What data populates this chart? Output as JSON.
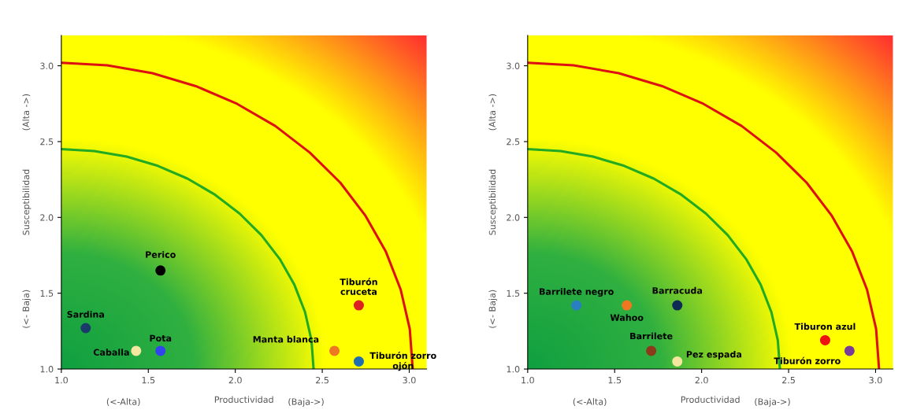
{
  "chart_data": [
    {
      "type": "scatter",
      "xlabel": "Productividad",
      "ylabel": "Susceptibilidad",
      "annotations": [
        "(<-Alta)",
        "(Baja->)",
        "(<- Baja)",
        "(Alta ->)"
      ],
      "xlim": [
        1.0,
        3.1
      ],
      "ylim": [
        1.0,
        3.2
      ],
      "xticks": [
        {
          "value": 1.0,
          "label": "1.0"
        },
        {
          "value": 1.5,
          "label": "1.5"
        },
        {
          "value": 2.0,
          "label": "2.0"
        },
        {
          "value": 2.5,
          "label": "2.5"
        },
        {
          "value": 3.0,
          "label": "3.0"
        }
      ],
      "yticks": [
        {
          "value": 1.0,
          "label": "1.0"
        },
        {
          "value": 1.5,
          "label": "1.5"
        },
        {
          "value": 2.0,
          "label": "2.0"
        },
        {
          "value": 2.5,
          "label": "2.5"
        },
        {
          "value": 3.0,
          "label": "3.0"
        }
      ],
      "grid": false,
      "legend": false,
      "marker": "circle",
      "series": [
        {
          "type": "line",
          "marker": "none",
          "color": "#22aa22",
          "x": [
            1.0,
            1.189,
            1.375,
            1.555,
            1.725,
            1.883,
            2.025,
            2.15,
            2.256,
            2.34,
            2.401,
            2.438,
            2.45
          ],
          "values": [
            2.45,
            2.438,
            2.401,
            2.34,
            2.256,
            2.15,
            2.025,
            1.883,
            1.725,
            1.555,
            1.375,
            1.189,
            1.0
          ]
        },
        {
          "type": "line",
          "marker": "none",
          "color": "#dd1111",
          "x": [
            1.0,
            1.264,
            1.523,
            1.773,
            2.01,
            2.23,
            2.428,
            2.603,
            2.749,
            2.866,
            2.951,
            3.003,
            3.02
          ],
          "values": [
            3.02,
            3.003,
            2.951,
            2.866,
            2.749,
            2.603,
            2.428,
            2.23,
            2.01,
            1.773,
            1.523,
            1.264,
            1.0
          ]
        },
        {
          "name": "Perico",
          "color": "#000000",
          "x": [
            1.57
          ],
          "values": [
            1.65
          ]
        },
        {
          "name": "Sardina",
          "color": "#1a3a6a",
          "x": [
            1.14
          ],
          "values": [
            1.27
          ]
        },
        {
          "name": "Caballa",
          "color": "#f5e6a0",
          "x": [
            1.43
          ],
          "values": [
            1.12
          ]
        },
        {
          "name": "Pota",
          "color": "#3344ee",
          "x": [
            1.57
          ],
          "values": [
            1.12
          ]
        },
        {
          "name": "Manta blanca",
          "color": "#ee7722",
          "x": [
            2.57
          ],
          "values": [
            1.12
          ]
        },
        {
          "name": "Tiburón\ncruceta",
          "color": "#dd2222",
          "x": [
            2.71
          ],
          "values": [
            1.42
          ]
        },
        {
          "name": "Tiburón zorro\nojón",
          "color": "#1f6fb0",
          "x": [
            2.71
          ],
          "values": [
            1.05
          ]
        }
      ]
    },
    {
      "type": "scatter",
      "xlabel": "Productividad",
      "ylabel": "Susceptibilidad",
      "annotations": [
        "(<-Alta)",
        "(Baja->)",
        "(<- Baja)",
        "(Alta ->)"
      ],
      "xlim": [
        1.0,
        3.1
      ],
      "ylim": [
        1.0,
        3.2
      ],
      "xticks": [
        {
          "value": 1.0,
          "label": "1.0"
        },
        {
          "value": 1.5,
          "label": "1.5"
        },
        {
          "value": 2.0,
          "label": "2.0"
        },
        {
          "value": 2.5,
          "label": "2.5"
        },
        {
          "value": 3.0,
          "label": "3.0"
        }
      ],
      "yticks": [
        {
          "value": 1.0,
          "label": "1.0"
        },
        {
          "value": 1.5,
          "label": "1.5"
        },
        {
          "value": 2.0,
          "label": "2.0"
        },
        {
          "value": 2.5,
          "label": "2.5"
        },
        {
          "value": 3.0,
          "label": "3.0"
        }
      ],
      "grid": false,
      "legend": false,
      "marker": "circle",
      "series": [
        {
          "type": "line",
          "marker": "none",
          "color": "#22aa22",
          "x": [
            1.0,
            1.189,
            1.375,
            1.555,
            1.725,
            1.883,
            2.025,
            2.15,
            2.256,
            2.34,
            2.401,
            2.438,
            2.45
          ],
          "values": [
            2.45,
            2.438,
            2.401,
            2.34,
            2.256,
            2.15,
            2.025,
            1.883,
            1.725,
            1.555,
            1.375,
            1.189,
            1.0
          ]
        },
        {
          "type": "line",
          "marker": "none",
          "color": "#dd1111",
          "x": [
            1.0,
            1.264,
            1.523,
            1.773,
            2.01,
            2.23,
            2.428,
            2.603,
            2.749,
            2.866,
            2.951,
            3.003,
            3.02
          ],
          "values": [
            3.02,
            3.003,
            2.951,
            2.866,
            2.749,
            2.603,
            2.428,
            2.23,
            2.01,
            1.773,
            1.523,
            1.264,
            1.0
          ]
        },
        {
          "name": "Barrilete negro",
          "color": "#2a7fc0",
          "x": [
            1.28
          ],
          "values": [
            1.42
          ]
        },
        {
          "name": "Wahoo",
          "color": "#ee7722",
          "x": [
            1.57
          ],
          "values": [
            1.42
          ]
        },
        {
          "name": "Barracuda",
          "color": "#0f2a55",
          "x": [
            1.86
          ],
          "values": [
            1.42
          ]
        },
        {
          "name": "Barrilete",
          "color": "#8b3a1a",
          "x": [
            1.71
          ],
          "values": [
            1.12
          ]
        },
        {
          "name": "Pez espada",
          "color": "#f5e6a0",
          "x": [
            1.86
          ],
          "values": [
            1.05
          ]
        },
        {
          "name": "Tiburon azul",
          "color": "#ee1111",
          "x": [
            2.71
          ],
          "values": [
            1.19
          ]
        },
        {
          "name": "Tiburón zorro",
          "color": "#7a3a9a",
          "x": [
            2.85
          ],
          "values": [
            1.12
          ]
        }
      ]
    }
  ]
}
